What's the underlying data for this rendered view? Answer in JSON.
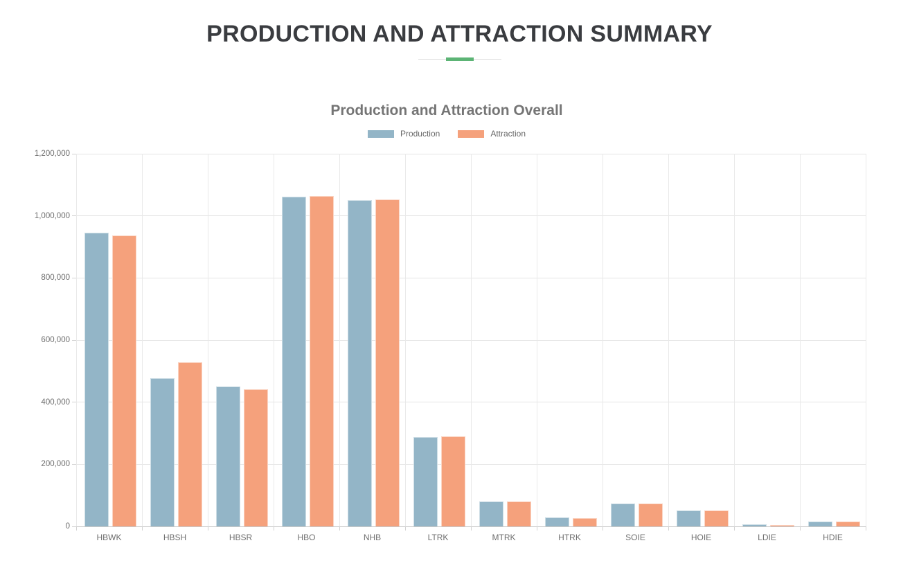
{
  "page": {
    "title": "PRODUCTION AND ATTRACTION SUMMARY",
    "divider_accent_color": "#5cb475"
  },
  "chart_data": {
    "type": "bar",
    "title": "Production and Attraction Overall",
    "categories": [
      "HBWK",
      "HBSH",
      "HBSR",
      "HBO",
      "NHB",
      "LTRK",
      "MTRK",
      "HTRK",
      "SOIE",
      "HOIE",
      "LDIE",
      "HDIE"
    ],
    "series": [
      {
        "name": "Production",
        "color": "#93b5c7",
        "values": [
          945000,
          477000,
          450000,
          1062000,
          1051000,
          288000,
          80000,
          29000,
          73000,
          51000,
          6000,
          15000
        ]
      },
      {
        "name": "Attraction",
        "color": "#f5a17c",
        "values": [
          938000,
          528000,
          441000,
          1064000,
          1054000,
          289000,
          80000,
          27000,
          73000,
          51000,
          5000,
          15000
        ]
      }
    ],
    "xlabel": "",
    "ylabel": "",
    "ylim": [
      0,
      1200000
    ],
    "y_ticks": [
      0,
      200000,
      400000,
      600000,
      800000,
      1000000,
      1200000
    ],
    "y_tick_labels": [
      "0",
      "200,000",
      "400,000",
      "600,000",
      "800,000",
      "1,000,000",
      "1,200,000"
    ],
    "grid": true,
    "legend_position": "top-center"
  }
}
